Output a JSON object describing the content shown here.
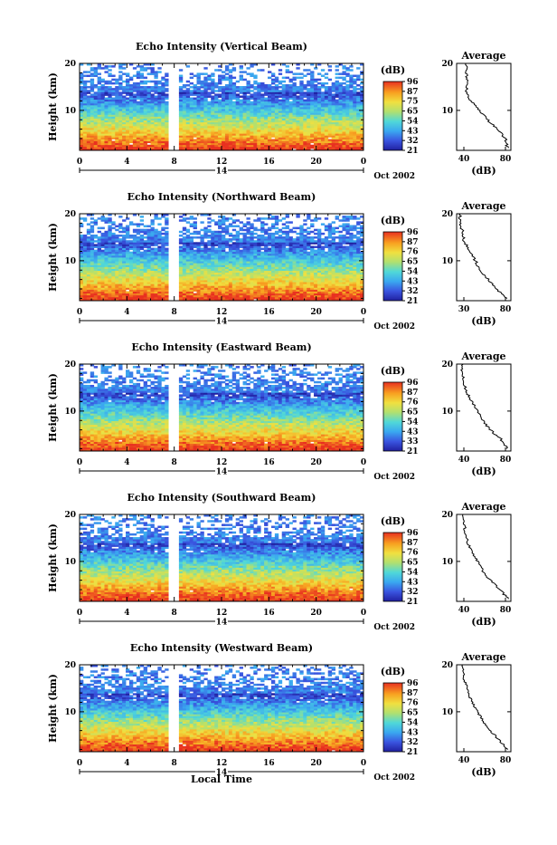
{
  "panels": [
    {
      "title": "Echo Intensity (Vertical Beam)",
      "avg_title": "Average",
      "ylabel": "Height (km)",
      "colorbar_unit": "(dB)",
      "colorbar_ticks": [
        "96",
        "87",
        "75",
        "65",
        "54",
        "43",
        "32",
        "21"
      ],
      "x_ticks": [
        "0",
        "4",
        "8",
        "12",
        "16",
        "20",
        "0"
      ],
      "day_label": "14",
      "month_label": "Oct 2002",
      "avg_xticks": [
        "40",
        "80"
      ],
      "avg_xlabel": "(dB)",
      "y_ticks": [
        "10",
        "20"
      ]
    },
    {
      "title": "Echo Intensity (Northward Beam)",
      "avg_title": "Average",
      "ylabel": "Height (km)",
      "colorbar_unit": "(dB)",
      "colorbar_ticks": [
        "96",
        "87",
        "76",
        "65",
        "54",
        "43",
        "32",
        "21"
      ],
      "x_ticks": [
        "0",
        "4",
        "8",
        "12",
        "16",
        "20",
        "0"
      ],
      "day_label": "14",
      "month_label": "Oct 2002",
      "avg_xticks": [
        "30",
        "80"
      ],
      "avg_xlabel": "(dB)",
      "y_ticks": [
        "10",
        "20"
      ]
    },
    {
      "title": "Echo Intensity (Eastward Beam)",
      "avg_title": "Average",
      "ylabel": "Height (km)",
      "colorbar_unit": "(dB)",
      "colorbar_ticks": [
        "96",
        "87",
        "76",
        "65",
        "54",
        "43",
        "33",
        "21"
      ],
      "x_ticks": [
        "0",
        "4",
        "8",
        "12",
        "16",
        "20",
        "0"
      ],
      "day_label": "14",
      "month_label": "Oct 2002",
      "avg_xticks": [
        "40",
        "80"
      ],
      "avg_xlabel": "(dB)",
      "y_ticks": [
        "10",
        "20"
      ]
    },
    {
      "title": "Echo Intensity (Southward Beam)",
      "avg_title": "Average",
      "ylabel": "Height (km)",
      "colorbar_unit": "(dB)",
      "colorbar_ticks": [
        "96",
        "87",
        "76",
        "65",
        "54",
        "43",
        "32",
        "21"
      ],
      "x_ticks": [
        "0",
        "4",
        "8",
        "12",
        "16",
        "20",
        "0"
      ],
      "day_label": "14",
      "month_label": "Oct 2002",
      "avg_xticks": [
        "40",
        "80"
      ],
      "avg_xlabel": "(dB)",
      "y_ticks": [
        "10",
        "20"
      ]
    },
    {
      "title": "Echo Intensity (Westward Beam)",
      "avg_title": "Average",
      "ylabel": "Height (km)",
      "colorbar_unit": "(dB)",
      "colorbar_ticks": [
        "96",
        "87",
        "76",
        "65",
        "54",
        "43",
        "32",
        "21"
      ],
      "x_ticks": [
        "0",
        "4",
        "8",
        "12",
        "16",
        "20",
        "0"
      ],
      "day_label": "14",
      "month_label": "Oct 2002",
      "avg_xticks": [
        "40",
        "80"
      ],
      "avg_xlabel": "(dB)",
      "y_ticks": [
        "10",
        "20"
      ]
    }
  ],
  "bottom_xlabel": "Local Time",
  "chart_data": [
    {
      "type": "heatmap",
      "title": "Echo Intensity (Vertical Beam)",
      "xlabel": "",
      "ylabel": "Height (km)",
      "x_range_hours": [
        0,
        24
      ],
      "y_range_km": [
        1.5,
        20
      ],
      "colorbar": {
        "label": "(dB)",
        "ticks": [
          96,
          87,
          75,
          65,
          54,
          43,
          32,
          21
        ]
      },
      "data_gap_hours": [
        7.6,
        8.3
      ],
      "profile": {
        "title": "Average",
        "xlabel": "(dB)",
        "xlim": [
          30,
          90
        ],
        "heights_km": [
          2,
          4,
          6,
          8,
          10,
          12,
          14,
          16,
          18,
          20
        ],
        "values_db": [
          86,
          84,
          75,
          64,
          55,
          46,
          40,
          43,
          40,
          41
        ]
      }
    },
    {
      "type": "heatmap",
      "title": "Echo Intensity (Northward Beam)",
      "xlabel": "",
      "ylabel": "Height (km)",
      "x_range_hours": [
        0,
        24
      ],
      "y_range_km": [
        1.5,
        20
      ],
      "colorbar": {
        "label": "(dB)",
        "ticks": [
          96,
          87,
          76,
          65,
          54,
          43,
          32,
          21
        ]
      },
      "data_gap_hours": [
        7.6,
        8.3
      ],
      "profile": {
        "title": "Average",
        "xlabel": "(dB)",
        "xlim": [
          30,
          85
        ],
        "heights_km": [
          2,
          4,
          6,
          8,
          10,
          12,
          14,
          16,
          18,
          20
        ],
        "values_db": [
          80,
          70,
          62,
          54,
          49,
          44,
          38,
          36,
          34,
          33
        ]
      }
    },
    {
      "type": "heatmap",
      "title": "Echo Intensity (Eastward Beam)",
      "xlabel": "",
      "ylabel": "Height (km)",
      "x_range_hours": [
        0,
        24
      ],
      "y_range_km": [
        1.5,
        20
      ],
      "colorbar": {
        "label": "(dB)",
        "ticks": [
          96,
          87,
          76,
          65,
          54,
          43,
          33,
          21
        ]
      },
      "data_gap_hours": [
        7.6,
        8.3
      ],
      "profile": {
        "title": "Average",
        "xlabel": "(dB)",
        "xlim": [
          25,
          85
        ],
        "heights_km": [
          2,
          4,
          6,
          8,
          10,
          12,
          14,
          16,
          18,
          20
        ],
        "values_db": [
          81,
          74,
          62,
          54,
          48,
          42,
          36,
          33,
          31,
          31
        ]
      }
    },
    {
      "type": "heatmap",
      "title": "Echo Intensity (Southward Beam)",
      "xlabel": "",
      "ylabel": "Height (km)",
      "x_range_hours": [
        0,
        24
      ],
      "y_range_km": [
        1.5,
        20
      ],
      "colorbar": {
        "label": "(dB)",
        "ticks": [
          96,
          87,
          76,
          65,
          54,
          43,
          32,
          21
        ]
      },
      "data_gap_hours": [
        7.6,
        8.3
      ],
      "profile": {
        "title": "Average",
        "xlabel": "(dB)",
        "xlim": [
          25,
          85
        ],
        "heights_km": [
          2,
          4,
          6,
          8,
          10,
          12,
          14,
          16,
          18,
          20
        ],
        "values_db": [
          82,
          73,
          62,
          54,
          48,
          42,
          37,
          35,
          33,
          32
        ]
      }
    },
    {
      "type": "heatmap",
      "title": "Echo Intensity (Westward Beam)",
      "xlabel": "Local Time",
      "ylabel": "Height (km)",
      "x_range_hours": [
        0,
        24
      ],
      "y_range_km": [
        1.5,
        20
      ],
      "colorbar": {
        "label": "(dB)",
        "ticks": [
          96,
          87,
          76,
          65,
          54,
          43,
          32,
          21
        ]
      },
      "data_gap_hours": [
        7.6,
        8.3
      ],
      "profile": {
        "title": "Average",
        "xlabel": "(dB)",
        "xlim": [
          25,
          85
        ],
        "heights_km": [
          2,
          4,
          6,
          8,
          10,
          12,
          14,
          16,
          18,
          20
        ],
        "values_db": [
          82,
          72,
          62,
          54,
          48,
          42,
          38,
          35,
          32,
          31
        ]
      }
    }
  ]
}
